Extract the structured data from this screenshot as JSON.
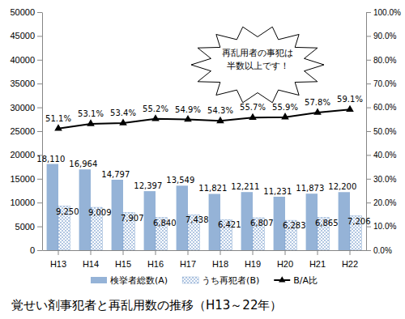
{
  "chart_data": {
    "type": "bar",
    "title": "覚せい剤事犯者と再乱用数の推移（H13～22年）",
    "annotation": "再乱用者の事犯は\n半数以上です！",
    "categories": [
      "H13",
      "H14",
      "H15",
      "H16",
      "H17",
      "H18",
      "H19",
      "H20",
      "H21",
      "H22"
    ],
    "series": [
      {
        "name": "検挙者総数(A)",
        "type": "bar",
        "color": "#95b3d7",
        "values": [
          18110,
          16964,
          14797,
          12397,
          13549,
          11821,
          12211,
          11231,
          11873,
          12200
        ],
        "value_labels": [
          "18,110",
          "16,964",
          "14,797",
          "12,397",
          "13,549",
          "11,821",
          "12,211",
          "11,231",
          "11,873",
          "12,200"
        ]
      },
      {
        "name": "うち再犯者(B)",
        "type": "bar",
        "color": "#4f81bd",
        "values": [
          9250,
          9009,
          7907,
          6840,
          7438,
          6421,
          6807,
          6283,
          6865,
          7206
        ],
        "value_labels": [
          "9,250",
          "9,009",
          "7,907",
          "6,840",
          "7,438",
          "6,421",
          "6,807",
          "6,283",
          "6,865",
          "7,206"
        ]
      },
      {
        "name": "B/A比",
        "type": "line",
        "axis": "y2",
        "color": "#000000",
        "marker": "triangle",
        "values": [
          51.1,
          53.1,
          53.4,
          55.2,
          54.9,
          54.3,
          55.7,
          55.9,
          57.8,
          59.1
        ],
        "value_labels": [
          "51.1%",
          "53.1%",
          "53.4%",
          "55.2%",
          "54.9%",
          "54.3%",
          "55.7%",
          "55.9%",
          "57.8%",
          "59.1%"
        ]
      }
    ],
    "ylim": [
      0,
      50000
    ],
    "yticks": [
      0,
      5000,
      10000,
      15000,
      20000,
      25000,
      30000,
      35000,
      40000,
      45000,
      50000
    ],
    "y2lim": [
      0,
      100
    ],
    "y2ticks": [
      {
        "value": 0,
        "label": "0.0%"
      },
      {
        "value": 10,
        "label": "10.0%"
      },
      {
        "value": 20,
        "label": "20.0%"
      },
      {
        "value": 30,
        "label": "30.0%"
      },
      {
        "value": 40,
        "label": "40.0%"
      },
      {
        "value": 50,
        "label": "50.0%"
      },
      {
        "value": 60,
        "label": "60.0%"
      },
      {
        "value": 70,
        "label": "70.0%"
      },
      {
        "value": 80,
        "label": "80.0%"
      },
      {
        "value": 90,
        "label": "90.0%"
      },
      {
        "value": 100,
        "label": "100.0%"
      }
    ],
    "data_labels": true,
    "grid": false,
    "legend": "bottom"
  }
}
